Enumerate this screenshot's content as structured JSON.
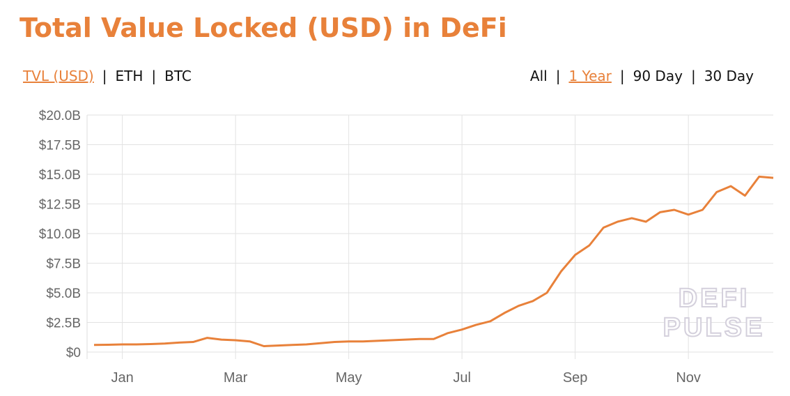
{
  "header": {
    "title": "Total Value Locked (USD) in DeFi"
  },
  "units_tabs": [
    "TVL (USD)",
    "ETH",
    "BTC"
  ],
  "units_active": 0,
  "range_tabs": [
    "All",
    "1 Year",
    "90 Day",
    "30 Day"
  ],
  "range_active": 1,
  "watermark": [
    "DEFI",
    "PULSE"
  ],
  "chart_data": {
    "type": "line",
    "color": "#e8813a",
    "grid": true,
    "categories": [
      null,
      null,
      "Jan",
      null,
      null,
      null,
      null,
      null,
      null,
      null,
      "Mar",
      null,
      null,
      null,
      null,
      null,
      null,
      null,
      "May",
      null,
      null,
      null,
      null,
      null,
      null,
      null,
      "Jul",
      null,
      null,
      null,
      null,
      null,
      null,
      null,
      "Sep",
      null,
      null,
      null,
      null,
      null,
      null,
      null,
      "Nov",
      null,
      null,
      null,
      null,
      null,
      null
    ],
    "values": [
      0.6,
      0.62,
      0.65,
      0.65,
      0.68,
      0.72,
      0.8,
      0.85,
      1.2,
      1.05,
      1.0,
      0.9,
      0.5,
      0.55,
      0.6,
      0.65,
      0.75,
      0.85,
      0.9,
      0.9,
      0.95,
      1.0,
      1.05,
      1.1,
      1.1,
      1.6,
      1.9,
      2.3,
      2.6,
      3.3,
      3.9,
      4.3,
      5.0,
      6.8,
      8.2,
      9.0,
      10.5,
      11.0,
      11.3,
      11.0,
      11.8,
      12.0,
      11.6,
      12.0,
      13.5,
      14.0,
      13.2,
      14.8,
      14.7
    ],
    "ylim": [
      0,
      20
    ],
    "yticks": [
      {
        "value": 0,
        "label": "$0"
      },
      {
        "value": 2.5,
        "label": "$2.5B"
      },
      {
        "value": 5,
        "label": "$5.0B"
      },
      {
        "value": 7.5,
        "label": "$7.5B"
      },
      {
        "value": 10,
        "label": "$10.0B"
      },
      {
        "value": 12.5,
        "label": "$12.5B"
      },
      {
        "value": 15,
        "label": "$15.0B"
      },
      {
        "value": 17.5,
        "label": "$17.5B"
      },
      {
        "value": 20,
        "label": "$20.0B"
      }
    ]
  }
}
